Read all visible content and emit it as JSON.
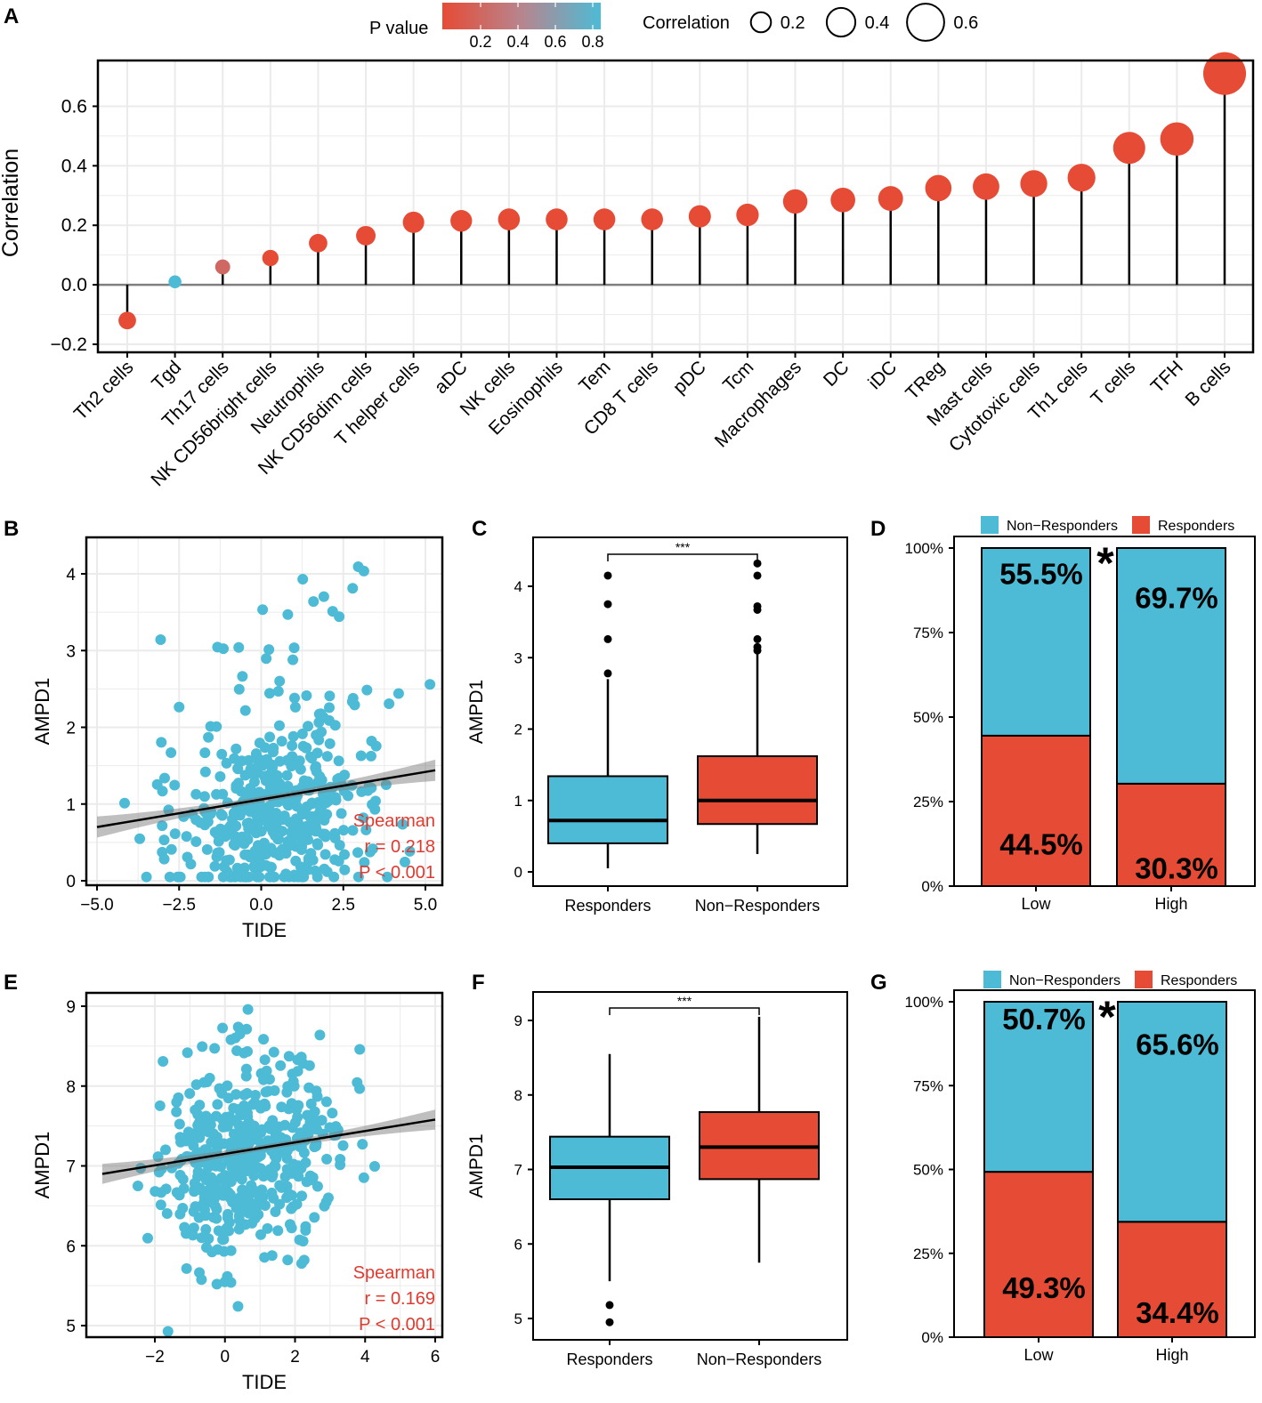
{
  "colors": {
    "red": "#E64B35",
    "blue": "#4DBBD5",
    "grid": "#EBEBEB",
    "axis": "#000000",
    "zero_line": "#7F7F7F",
    "spearman": "#E03A2F"
  },
  "chart_data": [
    {
      "panel": "A",
      "type": "lollipop",
      "ylabel": "Correlation",
      "ylim": [
        -0.2,
        0.75
      ],
      "yticks": [
        -0.2,
        0.0,
        0.2,
        0.4,
        0.6
      ],
      "ytick_labels": [
        "−0.2",
        "0.0",
        "0.2",
        "0.4",
        "0.6"
      ],
      "categories": [
        "Th2 cells",
        "Tgd",
        "Th17 cells",
        "NK CD56bright cells",
        "Neutrophils",
        "NK CD56dim cells",
        "T helper cells",
        "aDC",
        "NK cells",
        "Eosinophils",
        "Tem",
        "CD8 T cells",
        "pDC",
        "Tcm",
        "Macrophages",
        "DC",
        "iDC",
        "TReg",
        "Mast cells",
        "Cytotoxic cells",
        "Th1 cells",
        "T cells",
        "TFH",
        "B cells"
      ],
      "values": [
        -0.12,
        0.01,
        0.06,
        0.09,
        0.14,
        0.165,
        0.21,
        0.215,
        0.22,
        0.22,
        0.22,
        0.22,
        0.23,
        0.235,
        0.28,
        0.285,
        0.29,
        0.325,
        0.33,
        0.34,
        0.36,
        0.46,
        0.49,
        0.71
      ],
      "pvalues": [
        0.05,
        0.85,
        0.25,
        0.05,
        0.01,
        0.001,
        0.001,
        0.001,
        0.001,
        0.001,
        0.001,
        0.001,
        0.001,
        0.001,
        0.001,
        0.001,
        0.001,
        0.001,
        0.001,
        0.001,
        0.001,
        0.001,
        0.001,
        0.001
      ],
      "legend_pvalue": {
        "title": "P value",
        "ticks": [
          "0.2",
          "0.4",
          "0.6",
          "0.8"
        ]
      },
      "legend_corr": {
        "title": "Correlation",
        "sizes": [
          0.2,
          0.4,
          0.6
        ],
        "labels": [
          "0.2",
          "0.4",
          "0.6"
        ]
      }
    },
    {
      "panel": "B",
      "type": "scatter",
      "xlabel": "TIDE",
      "ylabel": "AMPD1",
      "xlim": [
        -5.2,
        5.5
      ],
      "ylim": [
        -0.1,
        4.5
      ],
      "xticks": [
        -5.0,
        -2.5,
        0.0,
        2.5,
        5.0
      ],
      "xtick_labels": [
        "−5.0",
        "−2.5",
        "0.0",
        "2.5",
        "5.0"
      ],
      "yticks": [
        0,
        1,
        2,
        3,
        4
      ],
      "ytick_labels": [
        "0",
        "1",
        "2",
        "3",
        "4"
      ],
      "regression": {
        "x": [
          -5.0,
          5.3
        ],
        "y": [
          0.7,
          1.44
        ]
      },
      "n_points": 480,
      "seed": 11,
      "spearman": {
        "label": "Spearman",
        "r_text": "r = 0.218",
        "p_text": "P < 0.001"
      }
    },
    {
      "panel": "C",
      "type": "boxplot",
      "ylabel": "AMPD1",
      "categories": [
        "Responders",
        "Non−Responders"
      ],
      "ylim": [
        -0.1,
        4.55
      ],
      "yticks": [
        0,
        1,
        2,
        3,
        4
      ],
      "ytick_labels": [
        "0",
        "1",
        "2",
        "3",
        "4"
      ],
      "boxes": [
        {
          "whisker_low": 0.05,
          "q1": 0.4,
          "median": 0.72,
          "q3": 1.34,
          "whisker_high": 2.7,
          "outliers": [
            2.78,
            3.26,
            3.75,
            4.15
          ]
        },
        {
          "whisker_low": 0.25,
          "q1": 0.67,
          "median": 1.0,
          "q3": 1.62,
          "whisker_high": 3.05,
          "outliers": [
            3.1,
            3.15,
            3.26,
            3.67,
            3.72,
            4.15,
            4.32
          ]
        }
      ],
      "significance": "***"
    },
    {
      "panel": "D",
      "type": "stacked_bar",
      "categories": [
        "Low",
        "High"
      ],
      "legend": [
        "Non−Responders",
        "Responders"
      ],
      "series": [
        {
          "name": "Responders",
          "values": [
            44.5,
            30.3
          ]
        },
        {
          "name": "Non−Responders",
          "values": [
            55.5,
            69.7
          ]
        }
      ],
      "labels": {
        "responders": [
          "44.5%",
          "30.3%"
        ],
        "non_responders": [
          "55.5%",
          "69.7%"
        ]
      },
      "yticks": [
        0,
        25,
        50,
        75,
        100
      ],
      "ytick_labels": [
        "0%",
        "25%",
        "50%",
        "75%",
        "100%"
      ],
      "significance": "*"
    },
    {
      "panel": "E",
      "type": "scatter",
      "xlabel": "TIDE",
      "ylabel": "AMPD1",
      "xlim": [
        -3.7,
        6.2
      ],
      "ylim": [
        4.85,
        9.25
      ],
      "xticks": [
        -2,
        0,
        2,
        4,
        6
      ],
      "xtick_labels": [
        "−2",
        "0",
        "2",
        "4",
        "6"
      ],
      "yticks": [
        5,
        6,
        7,
        8,
        9
      ],
      "ytick_labels": [
        "5",
        "6",
        "7",
        "8",
        "9"
      ],
      "regression": {
        "x": [
          -3.5,
          6.0
        ],
        "y": [
          6.9,
          7.58
        ]
      },
      "n_points": 480,
      "seed": 29,
      "spearman": {
        "label": "Spearman",
        "r_text": "r = 0.169",
        "p_text": "P < 0.001"
      }
    },
    {
      "panel": "F",
      "type": "boxplot",
      "ylabel": "AMPD1",
      "categories": [
        "Responders",
        "Non−Responders"
      ],
      "ylim": [
        4.8,
        9.35
      ],
      "yticks": [
        5,
        6,
        7,
        8,
        9
      ],
      "ytick_labels": [
        "5",
        "6",
        "7",
        "8",
        "9"
      ],
      "boxes": [
        {
          "whisker_low": 5.5,
          "q1": 6.6,
          "median": 7.03,
          "q3": 7.44,
          "whisker_high": 8.55,
          "outliers": [
            4.95,
            5.18
          ]
        },
        {
          "whisker_low": 5.75,
          "q1": 6.87,
          "median": 7.3,
          "q3": 7.77,
          "whisker_high": 9.05,
          "outliers": []
        }
      ],
      "significance": "***"
    },
    {
      "panel": "G",
      "type": "stacked_bar",
      "categories": [
        "Low",
        "High"
      ],
      "legend": [
        "Non−Responders",
        "Responders"
      ],
      "series": [
        {
          "name": "Responders",
          "values": [
            49.3,
            34.4
          ]
        },
        {
          "name": "Non−Responders",
          "values": [
            50.7,
            65.6
          ]
        }
      ],
      "labels": {
        "responders": [
          "49.3%",
          "34.4%"
        ],
        "non_responders": [
          "50.7%",
          "65.6%"
        ]
      },
      "yticks": [
        0,
        25,
        50,
        75,
        100
      ],
      "ytick_labels": [
        "0%",
        "25%",
        "50%",
        "75%",
        "100%"
      ],
      "significance": "*"
    }
  ],
  "panel_letters": [
    "A",
    "B",
    "C",
    "D",
    "E",
    "F",
    "G"
  ]
}
